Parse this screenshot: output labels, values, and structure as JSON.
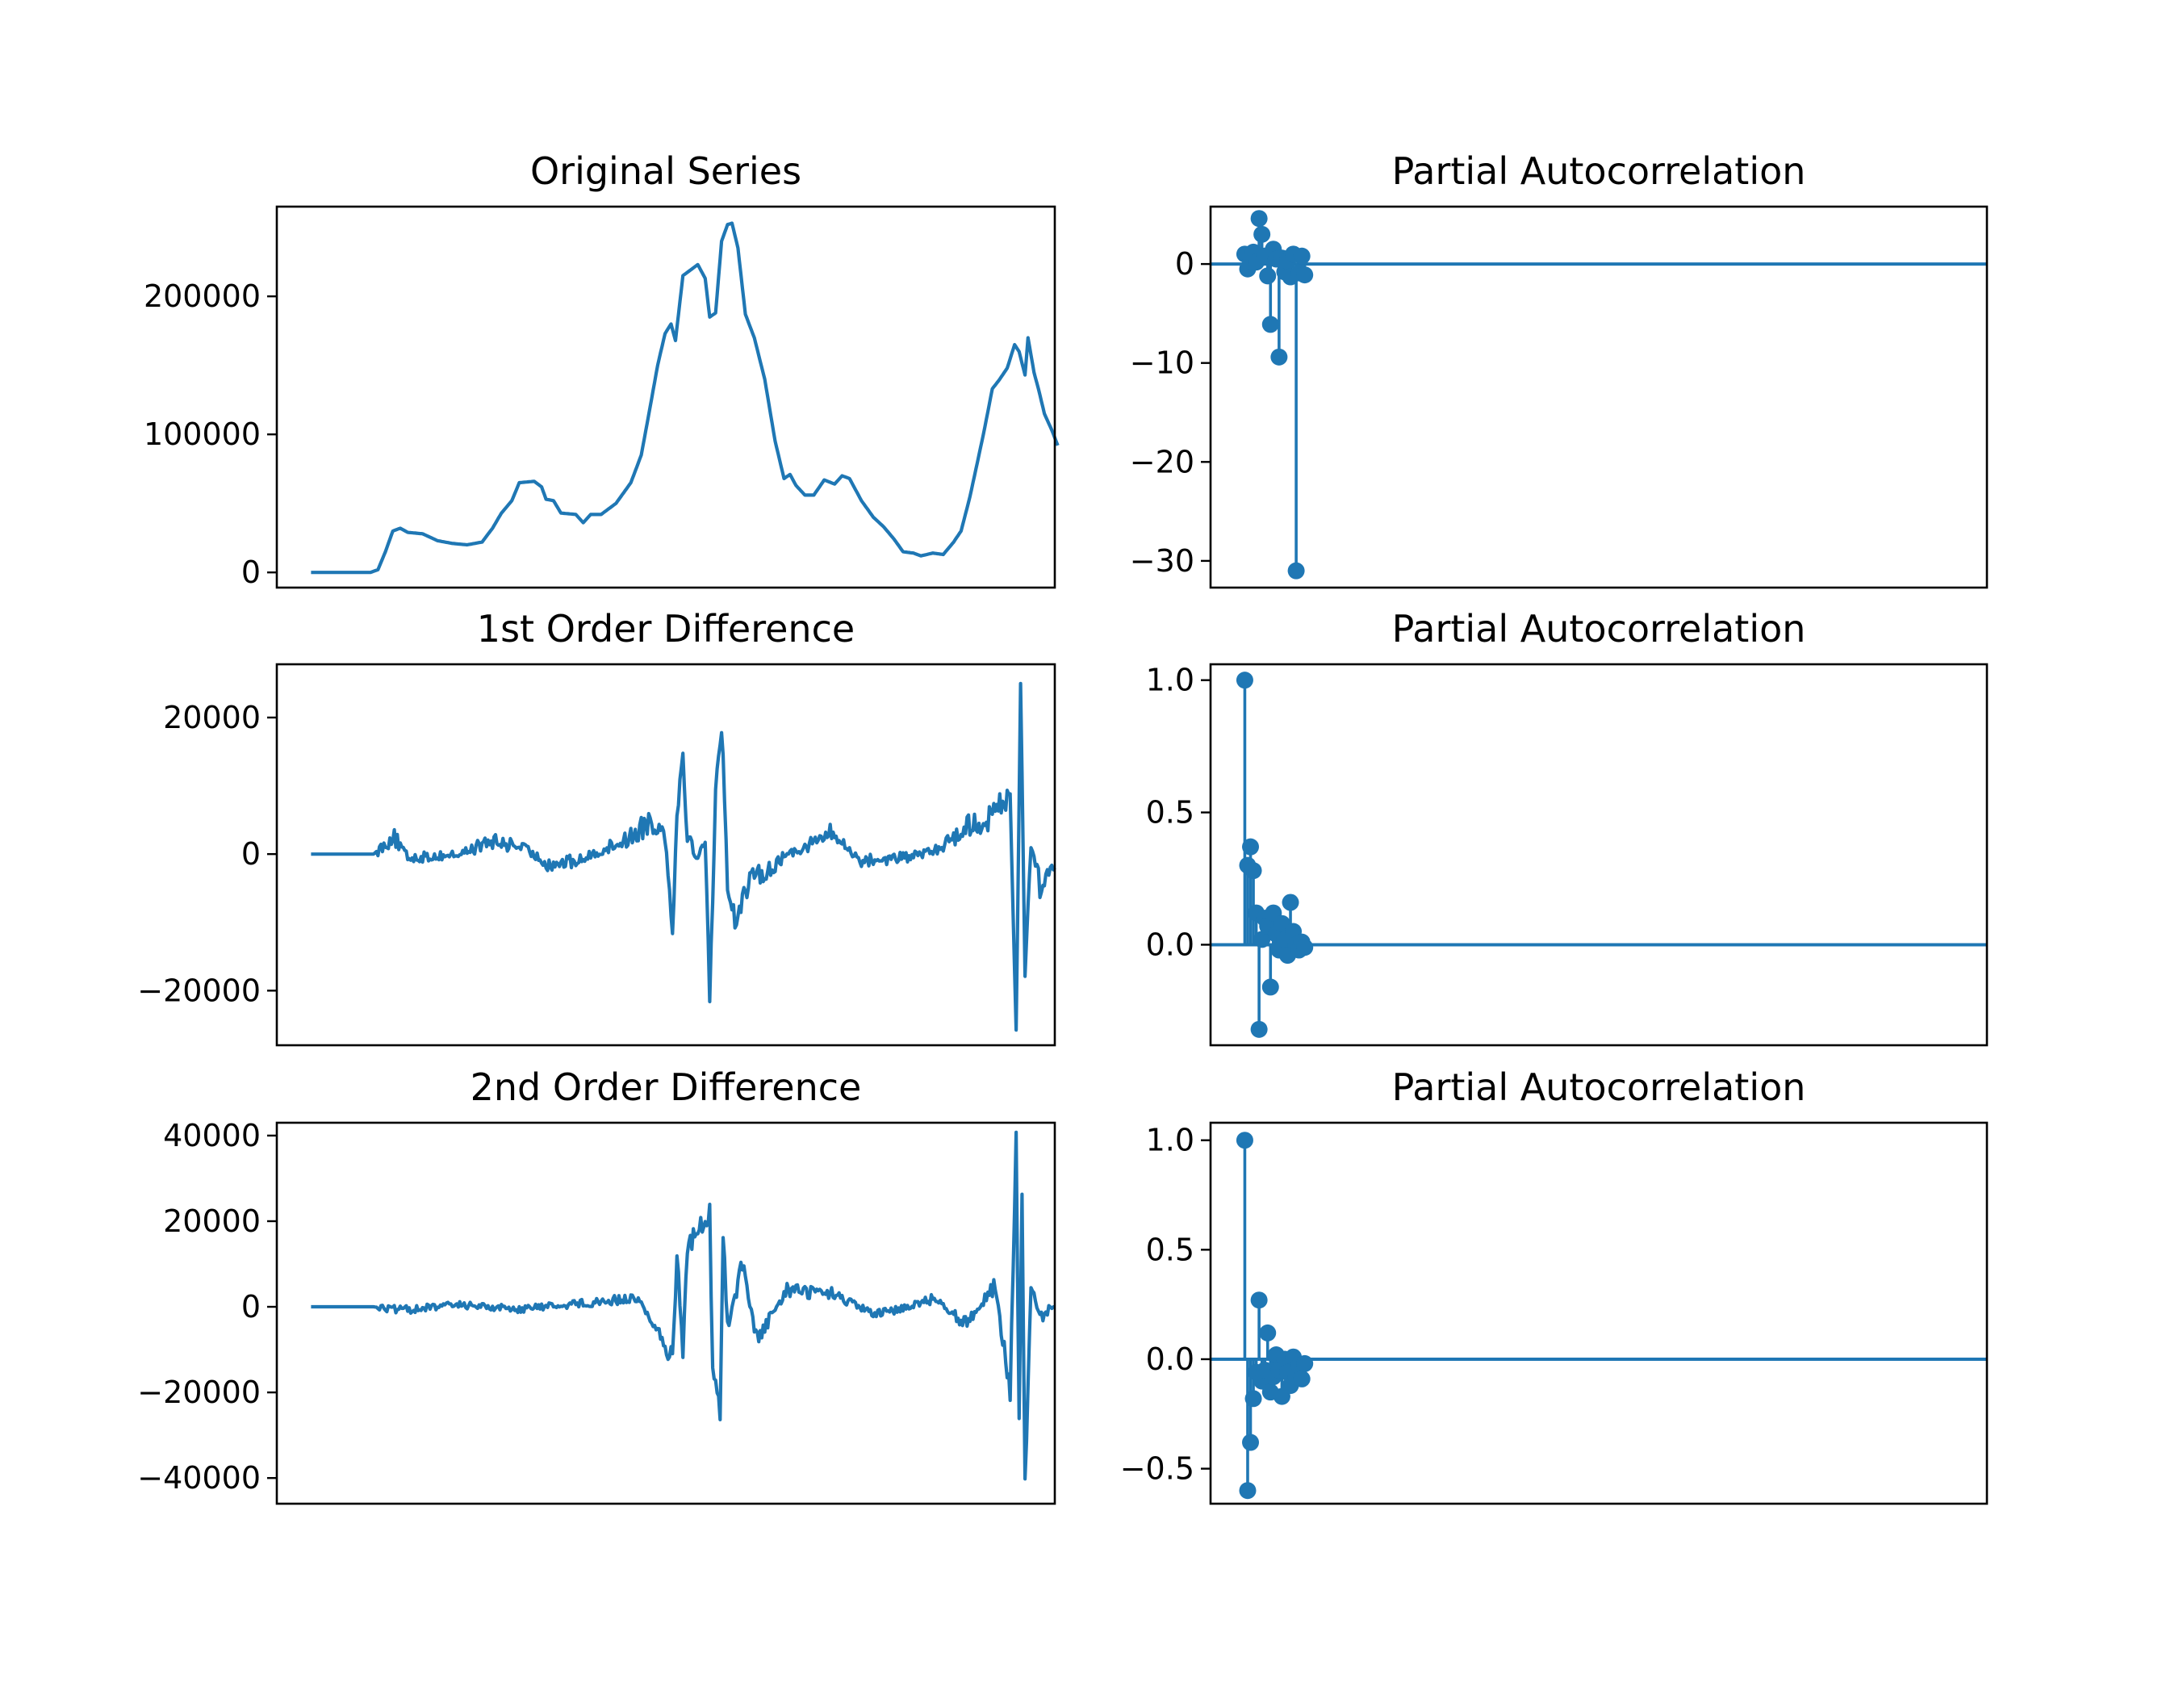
{
  "figure": {
    "line_color": "#1f77b4",
    "background": "#ffffff"
  },
  "chart_data": [
    {
      "id": "original",
      "type": "line",
      "title": "Original Series",
      "xlabel": "",
      "ylabel": "",
      "xlim": [
        -23,
        500
      ],
      "ylim": [
        -11000,
        265000
      ],
      "yticks": [
        0,
        100000,
        200000
      ],
      "ytick_labels": [
        "0",
        "100000",
        "200000"
      ],
      "x_axis_ticks": false,
      "grid": false,
      "knots": [
        [
          0,
          0
        ],
        [
          40,
          0
        ],
        [
          45,
          2000
        ],
        [
          50,
          15000
        ],
        [
          55,
          30000
        ],
        [
          60,
          32000
        ],
        [
          65,
          29000
        ],
        [
          75,
          28000
        ],
        [
          85,
          23000
        ],
        [
          95,
          21000
        ],
        [
          105,
          20000
        ],
        [
          115,
          22000
        ],
        [
          122,
          32000
        ],
        [
          128,
          43000
        ],
        [
          135,
          52000
        ],
        [
          140,
          65000
        ],
        [
          150,
          66000
        ],
        [
          155,
          62000
        ],
        [
          158,
          53000
        ],
        [
          163,
          52000
        ],
        [
          168,
          43000
        ],
        [
          178,
          42000
        ],
        [
          183,
          36000
        ],
        [
          188,
          42000
        ],
        [
          195,
          42000
        ],
        [
          205,
          50000
        ],
        [
          215,
          65000
        ],
        [
          222,
          85000
        ],
        [
          228,
          120000
        ],
        [
          233,
          150000
        ],
        [
          238,
          173000
        ],
        [
          242,
          180000
        ],
        [
          245,
          168000
        ],
        [
          250,
          215000
        ],
        [
          255,
          219000
        ],
        [
          260,
          223000
        ],
        [
          265,
          213000
        ],
        [
          268,
          185000
        ],
        [
          272,
          188000
        ],
        [
          276,
          240000
        ],
        [
          280,
          252000
        ],
        [
          283,
          253000
        ],
        [
          287,
          235000
        ],
        [
          292,
          187000
        ],
        [
          298,
          170000
        ],
        [
          305,
          140000
        ],
        [
          312,
          95000
        ],
        [
          318,
          68000
        ],
        [
          322,
          71000
        ],
        [
          326,
          63000
        ],
        [
          332,
          56000
        ],
        [
          338,
          56000
        ],
        [
          345,
          67000
        ],
        [
          352,
          64000
        ],
        [
          357,
          70000
        ],
        [
          362,
          68000
        ],
        [
          370,
          52000
        ],
        [
          378,
          40000
        ],
        [
          385,
          33000
        ],
        [
          392,
          24000
        ],
        [
          398,
          15000
        ],
        [
          405,
          14000
        ],
        [
          410,
          12000
        ],
        [
          418,
          14000
        ],
        [
          425,
          13000
        ],
        [
          432,
          22000
        ],
        [
          437,
          30000
        ],
        [
          443,
          55000
        ],
        [
          448,
          80000
        ],
        [
          452,
          100000
        ],
        [
          458,
          133000
        ],
        [
          463,
          140000
        ],
        [
          468,
          148000
        ],
        [
          473,
          165000
        ],
        [
          476,
          160000
        ],
        [
          480,
          143000
        ],
        [
          482,
          170000
        ],
        [
          486,
          145000
        ],
        [
          489,
          133000
        ],
        [
          493,
          115000
        ],
        [
          498,
          103000
        ],
        [
          502,
          92000
        ]
      ],
      "noise": 0
    },
    {
      "id": "diff1",
      "type": "line",
      "title": "1st Order Difference",
      "xlabel": "",
      "ylabel": "",
      "xlim": [
        -23,
        500
      ],
      "ylim": [
        -28000,
        27800
      ],
      "yticks": [
        -20000,
        0,
        20000
      ],
      "ytick_labels": [
        "−20000",
        "0",
        "20000"
      ],
      "x_axis_ticks": false,
      "grid": false,
      "knots": [
        [
          0,
          0
        ],
        [
          42,
          0
        ],
        [
          50,
          1500
        ],
        [
          55,
          2800
        ],
        [
          60,
          1000
        ],
        [
          65,
          -500
        ],
        [
          80,
          -400
        ],
        [
          100,
          0
        ],
        [
          120,
          1800
        ],
        [
          140,
          1200
        ],
        [
          160,
          -1500
        ],
        [
          180,
          -1000
        ],
        [
          200,
          1000
        ],
        [
          215,
          2500
        ],
        [
          228,
          5000
        ],
        [
          238,
          3000
        ],
        [
          243,
          -10500
        ],
        [
          246,
          5500
        ],
        [
          250,
          15000
        ],
        [
          253,
          3000
        ],
        [
          260,
          -1000
        ],
        [
          265,
          2500
        ],
        [
          268,
          -20000
        ],
        [
          272,
          8000
        ],
        [
          276,
          19500
        ],
        [
          280,
          -4000
        ],
        [
          285,
          -10000
        ],
        [
          290,
          -6000
        ],
        [
          300,
          -3000
        ],
        [
          310,
          -2000
        ],
        [
          320,
          0
        ],
        [
          340,
          2000
        ],
        [
          350,
          3000
        ],
        [
          370,
          -1000
        ],
        [
          400,
          -500
        ],
        [
          420,
          500
        ],
        [
          440,
          4000
        ],
        [
          455,
          5000
        ],
        [
          470,
          9000
        ],
        [
          474,
          -26000
        ],
        [
          477,
          24500
        ],
        [
          480,
          -17000
        ],
        [
          484,
          2000
        ],
        [
          490,
          -5000
        ],
        [
          500,
          -1500
        ]
      ],
      "noise": 1800,
      "noise_start": 45
    },
    {
      "id": "diff2",
      "type": "line",
      "title": "2nd Order Difference",
      "xlabel": "",
      "ylabel": "",
      "xlim": [
        -23,
        500
      ],
      "ylim": [
        -46000,
        43000
      ],
      "yticks": [
        -40000,
        -20000,
        0,
        20000,
        40000
      ],
      "ytick_labels": [
        "−40000",
        "−20000",
        "0",
        "20000",
        "40000"
      ],
      "x_axis_ticks": false,
      "grid": false,
      "knots": [
        [
          0,
          0
        ],
        [
          42,
          0
        ],
        [
          60,
          -800
        ],
        [
          100,
          500
        ],
        [
          140,
          -500
        ],
        [
          180,
          800
        ],
        [
          220,
          2000
        ],
        [
          243,
          -12000
        ],
        [
          246,
          12000
        ],
        [
          250,
          -10000
        ],
        [
          253,
          14000
        ],
        [
          268,
          22000
        ],
        [
          270,
          -15000
        ],
        [
          275,
          -25000
        ],
        [
          277,
          18000
        ],
        [
          280,
          -5000
        ],
        [
          290,
          10000
        ],
        [
          300,
          -8000
        ],
        [
          320,
          4000
        ],
        [
          350,
          3000
        ],
        [
          380,
          -2000
        ],
        [
          420,
          2000
        ],
        [
          440,
          -4000
        ],
        [
          460,
          5000
        ],
        [
          470,
          -20000
        ],
        [
          474,
          39000
        ],
        [
          476,
          -26000
        ],
        [
          478,
          25000
        ],
        [
          480,
          -42000
        ],
        [
          484,
          5000
        ],
        [
          490,
          -3000
        ],
        [
          500,
          1000
        ]
      ],
      "noise": 2200,
      "noise_start": 45
    },
    {
      "id": "pacf0",
      "type": "stem",
      "title": "Partial Autocorrelation",
      "xlabel": "",
      "ylabel": "",
      "xlim": [
        -1.2,
        26
      ],
      "ylim": [
        -32.7,
        5.8
      ],
      "yticks": [
        -30,
        -20,
        -10,
        0
      ],
      "ytick_labels": [
        "−30",
        "−20",
        "−10",
        "0"
      ],
      "x_axis_ticks": false,
      "grid": false,
      "lags": [
        0.0,
        0.1,
        0.2,
        0.3,
        0.4,
        0.5,
        0.6,
        0.7,
        0.8,
        0.9,
        1.0,
        1.1,
        1.2,
        1.3,
        1.4,
        1.5,
        1.6,
        1.7,
        1.8,
        1.9,
        2.0,
        2.1
      ],
      "values": [
        1.0,
        -0.5,
        0.3,
        1.2,
        0.2,
        4.6,
        3.0,
        0.8,
        -1.2,
        -6.1,
        1.5,
        0.5,
        -9.4,
        0.6,
        -0.8,
        0.3,
        -1.3,
        1.0,
        -31.0,
        -0.9,
        0.8,
        -1.1
      ]
    },
    {
      "id": "pacf1",
      "type": "stem",
      "title": "Partial Autocorrelation",
      "xlabel": "",
      "ylabel": "",
      "xlim": [
        -1.2,
        26
      ],
      "ylim": [
        -0.38,
        1.06
      ],
      "yticks": [
        0.0,
        0.5,
        1.0
      ],
      "ytick_labels": [
        "0.0",
        "0.5",
        "1.0"
      ],
      "x_axis_ticks": false,
      "grid": false,
      "lags": [
        0.0,
        0.1,
        0.2,
        0.3,
        0.4,
        0.5,
        0.6,
        0.7,
        0.8,
        0.9,
        1.0,
        1.1,
        1.2,
        1.3,
        1.4,
        1.5,
        1.6,
        1.7,
        1.8,
        1.9,
        2.0,
        2.1
      ],
      "values": [
        1.0,
        0.3,
        0.37,
        0.28,
        0.12,
        -0.32,
        0.02,
        0.1,
        0.07,
        -0.16,
        0.12,
        0.04,
        -0.02,
        0.08,
        0.02,
        -0.04,
        0.16,
        0.05,
        0.0,
        -0.02,
        0.01,
        -0.01
      ]
    },
    {
      "id": "pacf2",
      "type": "stem",
      "title": "Partial Autocorrelation",
      "xlabel": "",
      "ylabel": "",
      "xlim": [
        -1.2,
        26
      ],
      "ylim": [
        -0.66,
        1.08
      ],
      "yticks": [
        -0.5,
        0.0,
        0.5,
        1.0
      ],
      "ytick_labels": [
        "−0.5",
        "0.0",
        "0.5",
        "1.0"
      ],
      "x_axis_ticks": false,
      "grid": false,
      "lags": [
        0.0,
        0.1,
        0.2,
        0.3,
        0.4,
        0.5,
        0.6,
        0.7,
        0.8,
        0.9,
        1.0,
        1.1,
        1.2,
        1.3,
        1.4,
        1.5,
        1.6,
        1.7,
        1.8,
        1.9,
        2.0,
        2.1
      ],
      "values": [
        1.0,
        -0.6,
        -0.38,
        -0.18,
        -0.06,
        0.27,
        -0.1,
        -0.05,
        0.12,
        -0.15,
        -0.08,
        0.02,
        -0.05,
        -0.17,
        0.0,
        -0.06,
        -0.12,
        0.01,
        -0.08,
        -0.03,
        -0.09,
        -0.02
      ]
    }
  ]
}
